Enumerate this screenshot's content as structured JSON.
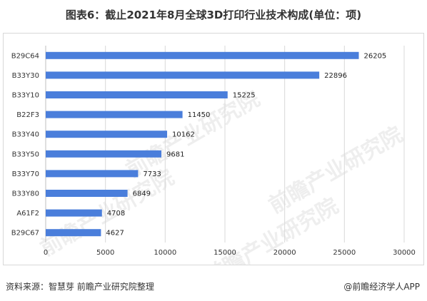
{
  "title": "图表6：截止2021年8月全球3D打印行业技术构成(单位：项)",
  "watermark": "前瞻产业研究院",
  "footer": {
    "source": "资料来源：智慧芽 前瞻产业研究院整理",
    "brand": "@前瞻经济学人APP"
  },
  "colors": {
    "bar": "#4a7edb",
    "grid": "#d9d9d9"
  },
  "chart_data": {
    "type": "bar",
    "orientation": "horizontal",
    "title": "图表6：截止2021年8月全球3D打印行业技术构成(单位：项)",
    "categories": [
      "B29C64",
      "B33Y30",
      "B33Y10",
      "B22F3",
      "B33Y40",
      "B33Y50",
      "B33Y70",
      "B33Y80",
      "A61F2",
      "B29C67"
    ],
    "values": [
      26205,
      22896,
      15225,
      11450,
      10162,
      9681,
      7733,
      6849,
      4708,
      4627
    ],
    "xlim": [
      0,
      30000
    ],
    "xticks": [
      0,
      5000,
      10000,
      15000,
      20000,
      25000,
      30000
    ],
    "grid": true,
    "legend": "none"
  }
}
